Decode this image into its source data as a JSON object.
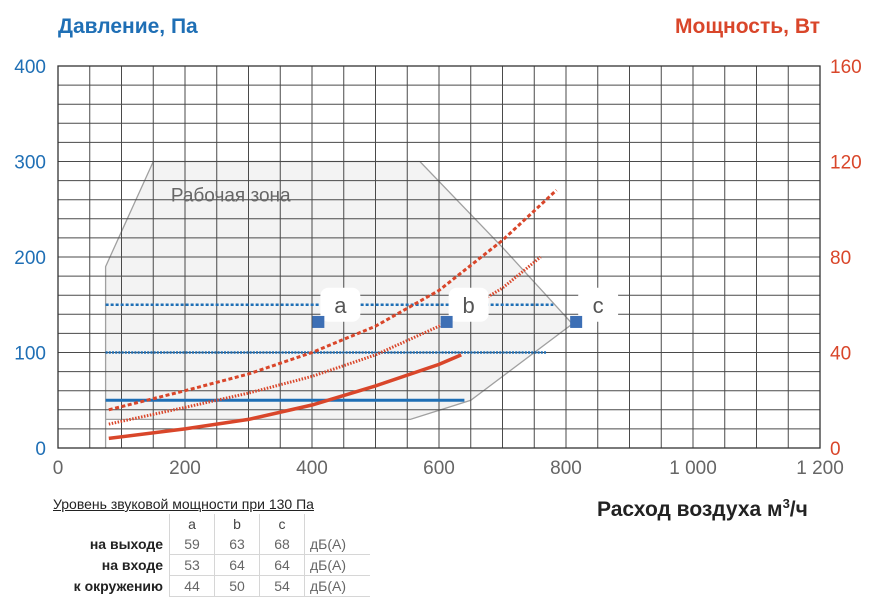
{
  "chart_data": {
    "type": "line",
    "left_axis_title": "Давление, Па",
    "right_axis_title": "Мощность, Вт",
    "xlabel_main": "Расход воздуха м",
    "xlabel_sup": "3",
    "xlabel_end": "/ч",
    "x_ticks": [
      "0",
      "200",
      "400",
      "600",
      "800",
      "1 000",
      "1 200"
    ],
    "y_left_ticks": [
      "0",
      "100",
      "200",
      "300",
      "400"
    ],
    "y_right_ticks": [
      "0",
      "40",
      "80",
      "120",
      "160"
    ],
    "xlim": [
      0,
      1200
    ],
    "ylim_left": [
      0,
      400
    ],
    "ylim_right": [
      0,
      160
    ],
    "grid": true,
    "zone_label": "Рабочая зона",
    "operating_zone": [
      [
        75,
        0
      ],
      [
        75,
        190
      ],
      [
        150,
        300
      ],
      [
        570,
        300
      ],
      [
        700,
        210
      ],
      [
        810,
        130
      ],
      [
        650,
        50
      ],
      [
        555,
        30
      ],
      [
        75,
        30
      ]
    ],
    "pressure_series": [
      {
        "style": "solid",
        "x": [
          75,
          640
        ],
        "y": [
          50,
          50
        ]
      },
      {
        "style": "dotted",
        "x": [
          75,
          770
        ],
        "y": [
          100,
          100
        ]
      },
      {
        "style": "dashed",
        "x": [
          75,
          780
        ],
        "y": [
          150,
          150
        ]
      }
    ],
    "power_series": [
      {
        "style": "solid",
        "x": [
          80,
          200,
          300,
          400,
          500,
          600,
          635
        ],
        "y": [
          4,
          8,
          12,
          18,
          26,
          35,
          39
        ]
      },
      {
        "style": "dotted",
        "x": [
          80,
          200,
          300,
          400,
          500,
          600,
          700,
          760
        ],
        "y": [
          10,
          17,
          23,
          30,
          39,
          51,
          67,
          80
        ]
      },
      {
        "style": "dashed",
        "x": [
          80,
          200,
          300,
          400,
          500,
          600,
          700,
          785
        ],
        "y": [
          16,
          24,
          31,
          40,
          51,
          66,
          87,
          108
        ]
      }
    ],
    "points": [
      {
        "label": "a",
        "x": 410,
        "y": 132
      },
      {
        "label": "b",
        "x": 612,
        "y": 132
      },
      {
        "label": "c",
        "x": 816,
        "y": 132
      }
    ],
    "colors": {
      "pressure": "#1f6fb5",
      "power": "#d9462a",
      "zone_fill": "#f3f3f3",
      "zone_stroke": "#a0a0a0",
      "grid": "#4a4a4a",
      "marker": "#3d6fb5"
    }
  },
  "sound_table": {
    "title": "Уровень звуковой мощности при 130 Па",
    "columns": [
      "a",
      "b",
      "c"
    ],
    "unit": "дБ(А)",
    "rows": [
      {
        "label": "на выходе",
        "values": [
          "59",
          "63",
          "68"
        ]
      },
      {
        "label": "на входе",
        "values": [
          "53",
          "64",
          "64"
        ]
      },
      {
        "label": "к окружению",
        "values": [
          "44",
          "50",
          "54"
        ]
      }
    ]
  }
}
